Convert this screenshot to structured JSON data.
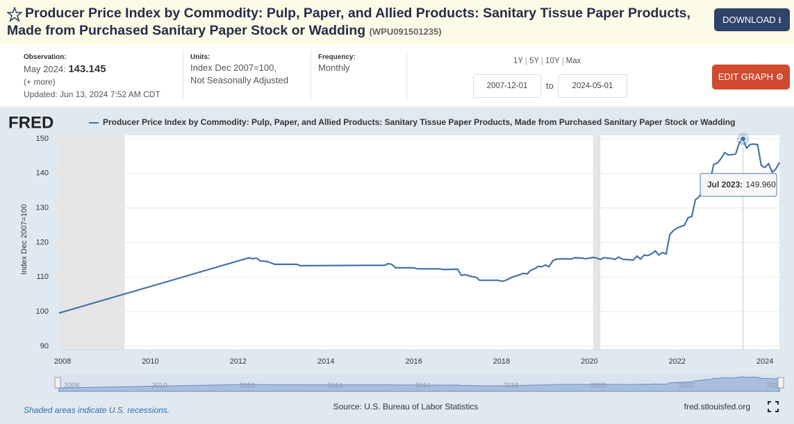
{
  "header": {
    "title": "Producer Price Index by Commodity: Pulp, Paper, and Allied Products: Sanitary Tissue Paper Products, Made from Purchased Sanitary Paper Stock or Wadding",
    "series_id": "(WPU091501235)",
    "download": "DOWNLOAD"
  },
  "info": {
    "observation_label": "Observation:",
    "observation_date": "May 2024:",
    "observation_value": "143.145",
    "more": "(+ more)",
    "updated": "Updated: Jun 13, 2024 7:52 AM CDT",
    "units_label": "Units:",
    "units": [
      "Index Dec 2007=100,",
      "Not Seasonally Adjusted"
    ],
    "frequency_label": "Frequency:",
    "frequency": "Monthly",
    "ranges": [
      "1Y",
      "5Y",
      "10Y",
      "Max"
    ],
    "start_date": "2007-12-01",
    "to": "to",
    "end_date": "2024-05-01",
    "edit": "EDIT GRAPH"
  },
  "footer": {
    "logo": "FRED",
    "recession_note": "Shaded areas indicate U.S. recessions.",
    "source": "Source: U.S. Bureau of Labor Statistics",
    "site": "fred.stlouisfed.org"
  },
  "chart_data": {
    "type": "line",
    "y_label": "Index Dec 2007=100",
    "xlim": [
      2007.92,
      2024.33
    ],
    "xticks": [
      2008,
      2010,
      2012,
      2014,
      2016,
      2018,
      2020,
      2022,
      2024
    ],
    "ylim": [
      90,
      150
    ],
    "yticks": [
      90,
      100,
      110,
      120,
      130,
      140,
      150
    ],
    "grid": true,
    "recessions": [
      [
        "2007-12",
        "2009-06"
      ],
      [
        "2020-02",
        "2020-04"
      ]
    ],
    "tooltip": {
      "label": "Jul 2023:",
      "x": "2023-07",
      "value_label": "149.960",
      "value": 149.96
    },
    "series": [
      {
        "name": "Producer Price Index by Commodity: Pulp, Paper, and Allied Products: Sanitary Tissue Paper Products, Made from Purchased Sanitary Paper Stock or Wadding",
        "color": "#4572a7",
        "x": [
          "2007-12",
          "2012-04",
          "2012-05",
          "2012-06",
          "2012-07",
          "2012-09",
          "2012-11",
          "2013-05",
          "2013-06",
          "2014-12",
          "2015-05",
          "2015-06",
          "2015-07",
          "2015-08",
          "2016-01",
          "2016-02",
          "2016-08",
          "2016-09",
          "2017-01",
          "2017-02",
          "2017-03",
          "2017-05",
          "2017-06",
          "2017-07",
          "2017-12",
          "2018-01",
          "2018-02",
          "2018-04",
          "2018-06",
          "2018-07",
          "2018-08",
          "2018-09",
          "2018-10",
          "2018-11",
          "2018-12",
          "2019-01",
          "2019-02",
          "2019-03",
          "2019-04",
          "2019-06",
          "2019-08",
          "2019-09",
          "2019-11",
          "2019-12",
          "2020-02",
          "2020-03",
          "2020-04",
          "2020-05",
          "2020-07",
          "2020-08",
          "2020-09",
          "2020-10",
          "2020-12",
          "2021-01",
          "2021-02",
          "2021-03",
          "2021-04",
          "2021-05",
          "2021-06",
          "2021-07",
          "2021-08",
          "2021-09",
          "2021-10",
          "2021-11",
          "2021-12",
          "2022-01",
          "2022-03",
          "2022-04",
          "2022-05",
          "2022-06",
          "2022-07",
          "2022-08",
          "2022-09",
          "2022-10",
          "2022-11",
          "2022-12",
          "2023-01",
          "2023-02",
          "2023-03",
          "2023-04",
          "2023-05",
          "2023-06",
          "2023-07",
          "2023-08",
          "2023-09",
          "2023-10",
          "2023-11",
          "2023-12",
          "2024-01",
          "2024-02",
          "2024-03",
          "2024-04",
          "2024-05"
        ],
        "values": [
          99.6,
          115.6,
          115.3,
          115.5,
          114.7,
          114.5,
          113.7,
          113.7,
          113.3,
          113.4,
          113.4,
          113.9,
          113.7,
          112.7,
          112.7,
          112.4,
          112.4,
          112.2,
          112.3,
          110.5,
          110.7,
          110.1,
          110.0,
          109.1,
          109.1,
          108.8,
          109.0,
          110.0,
          110.7,
          111.1,
          110.9,
          112.0,
          112.4,
          113.1,
          113.0,
          113.5,
          113.0,
          114.7,
          115.2,
          115.3,
          115.2,
          115.6,
          115.5,
          115.3,
          115.7,
          115.5,
          115.1,
          115.6,
          115.4,
          115.1,
          115.8,
          115.2,
          115.0,
          114.9,
          116.1,
          115.2,
          116.4,
          116.2,
          116.7,
          117.6,
          116.4,
          117.1,
          116.7,
          122.3,
          123.5,
          124.2,
          125.0,
          127.2,
          127.5,
          132.4,
          133.2,
          135.2,
          137.8,
          137.9,
          142.6,
          143.0,
          144.3,
          146.0,
          145.3,
          145.4,
          145.6,
          148.8,
          149.96,
          147.3,
          148.4,
          148.5,
          148.3,
          142.3,
          141.7,
          142.8,
          140.3,
          141.3,
          143.145
        ]
      }
    ]
  }
}
